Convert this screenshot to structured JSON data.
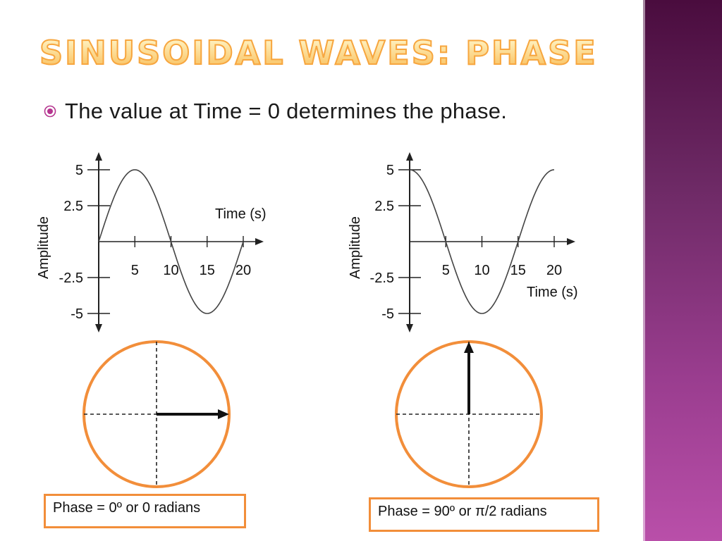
{
  "slide": {
    "title": "SINUSOIDAL WAVES: PHASE",
    "bullet": "The value at Time = 0 determines the phase.",
    "colors": {
      "title_fill": "#f9c05d",
      "accent_orange": "#f28e3a",
      "bullet_icon": "#b5358f",
      "sidebar": "#6e2a66"
    }
  },
  "chart_data": [
    {
      "type": "line",
      "xlabel": "Time (s)",
      "ylabel": "Amplitude",
      "xlim": [
        0,
        20
      ],
      "ylim": [
        -5,
        5
      ],
      "x_ticks": [
        5,
        10,
        15,
        20
      ],
      "x_tick_labels": [
        "5",
        "10",
        "15",
        "20"
      ],
      "y_ticks": [
        5,
        2.5,
        -2.5,
        -5
      ],
      "y_tick_labels": [
        "5",
        "2.5",
        "-2.5",
        "-5"
      ],
      "series": [
        {
          "function": "5*sin(2*pi*t/20)",
          "phase_deg": 0,
          "t_range": [
            0,
            20
          ],
          "color": "#444444"
        }
      ]
    },
    {
      "type": "line",
      "xlabel": "Time (s)",
      "ylabel": "Amplitude",
      "xlim": [
        0,
        20
      ],
      "ylim": [
        -5,
        5
      ],
      "x_ticks": [
        5,
        10,
        15,
        20
      ],
      "x_tick_labels": [
        "5",
        "10",
        "15",
        "20"
      ],
      "y_ticks": [
        5,
        2.5,
        -2.5,
        -5
      ],
      "y_tick_labels": [
        "5",
        "2.5",
        "-2.5",
        "-5"
      ],
      "series": [
        {
          "function": "5*cos(2*pi*t/20)",
          "phase_deg": 90,
          "t_range": [
            0,
            20
          ],
          "color": "#444444"
        }
      ]
    }
  ],
  "phasors": [
    {
      "angle_deg": 0,
      "caption": "Phase = 0º or 0 radians"
    },
    {
      "angle_deg": 90,
      "caption": "Phase = 90º or π/2 radians"
    }
  ]
}
